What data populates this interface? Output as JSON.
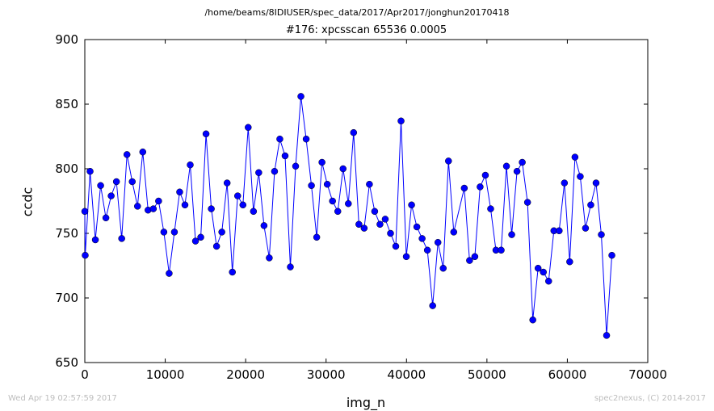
{
  "header": {
    "suptitle": "/home/beams/8IDIUSER/spec_data/2017/Apr2017/jonghun20170418"
  },
  "footer": {
    "timestamp": "Wed Apr 19 02:57:59 2017",
    "credit": "spec2nexus, (C) 2014-2017"
  },
  "chart_data": {
    "type": "line",
    "title": "#176: xpcsscan 65536 0.0005",
    "xlabel": "img_n",
    "ylabel": "ccdc",
    "xlim": [
      0,
      70000
    ],
    "ylim": [
      650,
      900
    ],
    "xticks": [
      0,
      10000,
      20000,
      30000,
      40000,
      50000,
      60000,
      70000
    ],
    "yticks": [
      650,
      700,
      750,
      800,
      850,
      900
    ],
    "grid": false,
    "marker": "circle",
    "line_color": "#0000ff",
    "marker_color": "#0000ff",
    "series": [
      {
        "x": [
          0,
          50,
          655,
          1311,
          1966,
          2621,
          3277,
          3932,
          4588,
          5243,
          5898,
          6554,
          7209,
          7864,
          8520,
          9175,
          9830,
          10486,
          11141,
          11796,
          12452,
          13107,
          13763,
          14418,
          15073,
          15729,
          16384,
          17039,
          17695,
          18350,
          19005,
          19661,
          20316,
          20972,
          21627,
          22282,
          22938,
          23593,
          24248,
          24904,
          25559,
          26214,
          26870,
          27525,
          28180,
          28836,
          29491,
          30147,
          30802,
          31457,
          32113,
          32768,
          33423,
          34079,
          34734,
          35389,
          36045,
          36700,
          37356,
          38011,
          38666,
          39322,
          39977,
          40632,
          41288,
          41943,
          42598,
          43254,
          43909,
          44565,
          45220,
          45875,
          47186,
          47841,
          48497,
          49152,
          49807,
          50463,
          51118,
          51774,
          52429,
          53084,
          53740,
          54395,
          55050,
          55706,
          56361,
          57016,
          57672,
          58327,
          58983,
          59638,
          60293,
          60949,
          61604,
          62259,
          62915,
          63570,
          64225,
          64881,
          65536
        ],
        "y": [
          767,
          733,
          798,
          745,
          787,
          762,
          779,
          790,
          746,
          811,
          790,
          771,
          813,
          768,
          769,
          775,
          751,
          719,
          751,
          782,
          772,
          803,
          744,
          747,
          827,
          769,
          740,
          751,
          789,
          720,
          779,
          772,
          832,
          767,
          797,
          756,
          731,
          798,
          823,
          810,
          724,
          802,
          856,
          823,
          787,
          747,
          805,
          788,
          775,
          767,
          800,
          773,
          828,
          757,
          754,
          788,
          767,
          757,
          761,
          750,
          740,
          837,
          732,
          772,
          755,
          746,
          737,
          694,
          743,
          723,
          806,
          751,
          785,
          729,
          732,
          786,
          795,
          769,
          737,
          737,
          802,
          749,
          798,
          805,
          774,
          683,
          723,
          720,
          713,
          752,
          752,
          789,
          728,
          809,
          794,
          754,
          772,
          789,
          749,
          671,
          733
        ]
      }
    ]
  }
}
